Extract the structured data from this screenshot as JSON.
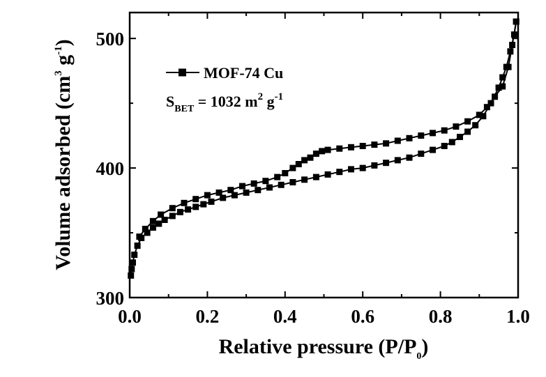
{
  "chart_data": {
    "type": "scatter",
    "title": "",
    "xlabel_main": "Relative pressure (P/P",
    "xlabel_sub": "0",
    "xlabel_end": ")",
    "ylabel_main": "Volume adsorbed (cm",
    "ylabel_sup1": "3",
    "ylabel_mid": " g",
    "ylabel_sup2": "-1",
    "ylabel_end": ")",
    "xlim": [
      0.0,
      1.0
    ],
    "ylim": [
      300,
      520
    ],
    "x_ticks": [
      "0.0",
      "0.2",
      "0.4",
      "0.6",
      "0.8",
      "1.0"
    ],
    "y_ticks": [
      "300",
      "400",
      "500"
    ],
    "legend_position": "top-left",
    "annotation": {
      "main": "S",
      "sub": "BET",
      "value": " = 1032 m",
      "sup1": "2",
      "unit": " g",
      "sup2": "-1"
    },
    "series": [
      {
        "name": "MOF-74 Cu",
        "color": "#000000",
        "marker": "square",
        "branch_adsorption": [
          [
            0.003,
            317
          ],
          [
            0.005,
            322
          ],
          [
            0.008,
            327
          ],
          [
            0.012,
            333
          ],
          [
            0.02,
            340
          ],
          [
            0.03,
            346
          ],
          [
            0.045,
            350
          ],
          [
            0.06,
            354
          ],
          [
            0.075,
            357
          ],
          [
            0.09,
            360
          ],
          [
            0.11,
            363
          ],
          [
            0.13,
            366
          ],
          [
            0.15,
            368
          ],
          [
            0.17,
            370
          ],
          [
            0.19,
            372
          ],
          [
            0.21,
            374
          ],
          [
            0.24,
            377
          ],
          [
            0.27,
            379
          ],
          [
            0.3,
            381
          ],
          [
            0.33,
            383
          ],
          [
            0.36,
            385
          ],
          [
            0.39,
            387
          ],
          [
            0.42,
            389
          ],
          [
            0.45,
            391
          ],
          [
            0.48,
            393
          ],
          [
            0.51,
            395
          ],
          [
            0.54,
            397
          ],
          [
            0.57,
            399
          ],
          [
            0.6,
            400
          ],
          [
            0.63,
            402
          ],
          [
            0.66,
            404
          ],
          [
            0.69,
            406
          ],
          [
            0.72,
            408
          ],
          [
            0.75,
            411
          ],
          [
            0.78,
            414
          ],
          [
            0.81,
            417
          ],
          [
            0.83,
            420
          ],
          [
            0.85,
            424
          ],
          [
            0.87,
            428
          ],
          [
            0.89,
            433
          ],
          [
            0.91,
            440
          ],
          [
            0.93,
            450
          ],
          [
            0.95,
            462
          ],
          [
            0.96,
            470
          ],
          [
            0.97,
            478
          ],
          [
            0.98,
            490
          ],
          [
            0.99,
            503
          ],
          [
            0.995,
            513
          ]
        ],
        "branch_desorption": [
          [
            0.995,
            513
          ],
          [
            0.985,
            495
          ],
          [
            0.975,
            478
          ],
          [
            0.96,
            463
          ],
          [
            0.94,
            455
          ],
          [
            0.92,
            447
          ],
          [
            0.9,
            441
          ],
          [
            0.87,
            436
          ],
          [
            0.84,
            432
          ],
          [
            0.81,
            429
          ],
          [
            0.78,
            427
          ],
          [
            0.75,
            425
          ],
          [
            0.72,
            423
          ],
          [
            0.69,
            421
          ],
          [
            0.66,
            419
          ],
          [
            0.63,
            418
          ],
          [
            0.6,
            417
          ],
          [
            0.57,
            416
          ],
          [
            0.54,
            415
          ],
          [
            0.51,
            414
          ],
          [
            0.495,
            413
          ],
          [
            0.48,
            411
          ],
          [
            0.465,
            408
          ],
          [
            0.45,
            406
          ],
          [
            0.435,
            403
          ],
          [
            0.42,
            400
          ],
          [
            0.4,
            396
          ],
          [
            0.38,
            393
          ],
          [
            0.35,
            390
          ],
          [
            0.32,
            388
          ],
          [
            0.29,
            386
          ],
          [
            0.26,
            383
          ],
          [
            0.23,
            381
          ],
          [
            0.2,
            379
          ],
          [
            0.17,
            376
          ],
          [
            0.14,
            373
          ],
          [
            0.11,
            369
          ],
          [
            0.08,
            364
          ],
          [
            0.06,
            359
          ],
          [
            0.04,
            353
          ],
          [
            0.025,
            347
          ]
        ]
      }
    ]
  }
}
